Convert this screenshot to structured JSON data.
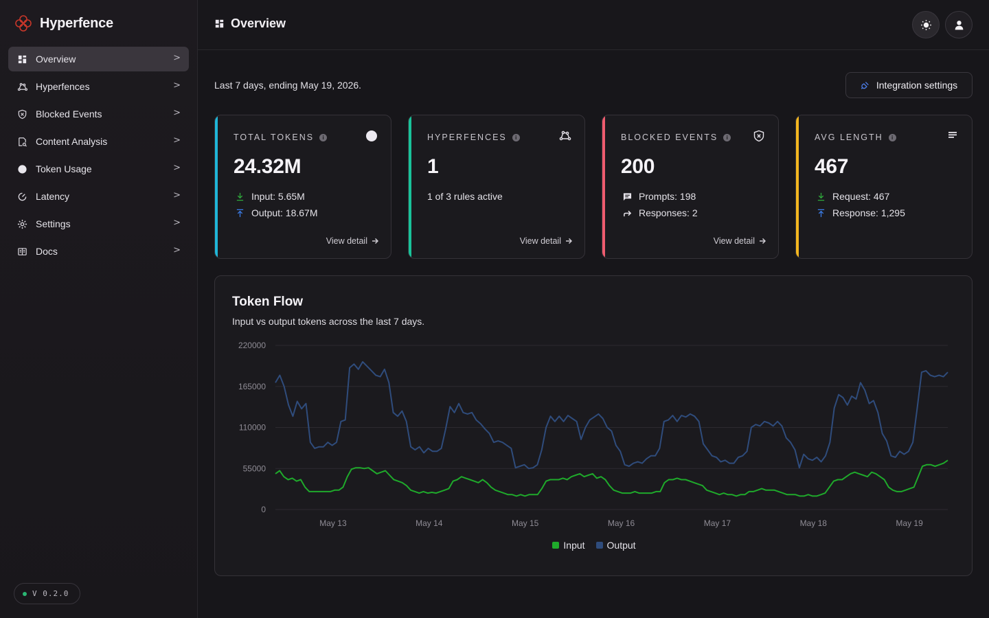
{
  "app": {
    "name": "Hyperfence"
  },
  "sidebar": {
    "items": [
      {
        "label": "Overview",
        "icon": "grid-icon",
        "active": true
      },
      {
        "label": "Hyperfences",
        "icon": "fence-icon"
      },
      {
        "label": "Blocked Events",
        "icon": "shield-icon"
      },
      {
        "label": "Content Analysis",
        "icon": "document-scan-icon"
      },
      {
        "label": "Token Usage",
        "icon": "circle-icon"
      },
      {
        "label": "Latency",
        "icon": "gauge-icon"
      },
      {
        "label": "Settings",
        "icon": "gear-icon"
      },
      {
        "label": "Docs",
        "icon": "book-icon"
      }
    ],
    "chevron": ">",
    "version": "V 0.2.0"
  },
  "header": {
    "title": "Overview"
  },
  "main": {
    "range_text": "Last 7 days, ending May 19, 2026.",
    "integration_button": "Integration settings",
    "cards": [
      {
        "label": "TOTAL TOKENS",
        "value": "24.32M",
        "rows": [
          "Input: 5.65M",
          "Output: 18.67M"
        ],
        "link": "View detail",
        "accent": "#1fb6d8"
      },
      {
        "label": "HYPERFENCES",
        "value": "1",
        "plain": "1 of 3 rules active",
        "link": "View detail",
        "accent": "#19c39a"
      },
      {
        "label": "BLOCKED EVENTS",
        "value": "200",
        "rows": [
          "Prompts: 198",
          "Responses: 2"
        ],
        "link": "View detail",
        "accent": "#ef5b6e"
      },
      {
        "label": "AVG LENGTH",
        "value": "467",
        "rows": [
          "Request: 467",
          "Response: 1,295"
        ],
        "accent": "#f3b61f"
      }
    ]
  },
  "chart": {
    "title": "Token Flow",
    "subtitle": "Input vs output tokens across the last 7 days."
  },
  "chart_data": {
    "type": "line",
    "title": "Token Flow",
    "xlabel": "",
    "ylabel": "",
    "ylim": [
      0,
      220000
    ],
    "yticks": [
      "220000",
      "165000",
      "110000",
      "55000",
      "0"
    ],
    "xticks": [
      "May 13",
      "May 14",
      "May 15",
      "May 16",
      "May 17",
      "May 18",
      "May 19"
    ],
    "grid": true,
    "legend": "bottom-center",
    "series": [
      {
        "name": "Input",
        "color": "#1faa2b",
        "values": [
          48000,
          52000,
          44000,
          40000,
          42000,
          38000,
          40000,
          30000,
          24000,
          24000,
          24000,
          24000,
          24000,
          24000,
          26000,
          26000,
          30000,
          44000,
          54000,
          56000,
          56000,
          55000,
          56000,
          52000,
          48000,
          50000,
          52000,
          46000,
          40000,
          38000,
          36000,
          32000,
          26000,
          24000,
          22000,
          24000,
          22000,
          23000,
          22000,
          24000,
          26000,
          28000,
          38000,
          40000,
          44000,
          42000,
          40000,
          38000,
          36000,
          40000,
          36000,
          30000,
          26000,
          24000,
          22000,
          20000,
          20000,
          18000,
          20000,
          18000,
          20000,
          20000,
          20000,
          28000,
          38000,
          40000,
          40000,
          40000,
          42000,
          40000,
          44000,
          46000,
          48000,
          44000,
          46000,
          48000,
          42000,
          44000,
          40000,
          32000,
          26000,
          24000,
          22000,
          22000,
          22000,
          24000,
          22000,
          22000,
          22000,
          22000,
          24000,
          24000,
          36000,
          40000,
          40000,
          42000,
          40000,
          40000,
          38000,
          36000,
          34000,
          32000,
          26000,
          24000,
          22000,
          20000,
          22000,
          20000,
          20000,
          18000,
          20000,
          20000,
          24000,
          24000,
          26000,
          28000,
          26000,
          26000,
          26000,
          24000,
          22000,
          20000,
          20000,
          20000,
          18000,
          18000,
          20000,
          18000,
          18000,
          20000,
          22000,
          30000,
          38000,
          40000,
          40000,
          44000,
          48000,
          50000,
          48000,
          46000,
          44000,
          50000,
          48000,
          44000,
          40000,
          30000,
          26000,
          24000,
          24000,
          26000,
          28000,
          30000,
          44000,
          58000,
          60000,
          60000,
          58000,
          60000,
          62000,
          66000
        ]
      },
      {
        "name": "Output",
        "color": "#2f4c7c",
        "values": [
          170000,
          180000,
          165000,
          140000,
          125000,
          145000,
          135000,
          142000,
          90000,
          82000,
          84000,
          84000,
          90000,
          86000,
          90000,
          118000,
          120000,
          190000,
          195000,
          188000,
          198000,
          192000,
          186000,
          180000,
          178000,
          188000,
          170000,
          130000,
          125000,
          132000,
          118000,
          84000,
          80000,
          84000,
          76000,
          82000,
          78000,
          78000,
          82000,
          108000,
          138000,
          130000,
          142000,
          130000,
          128000,
          130000,
          120000,
          115000,
          108000,
          102000,
          90000,
          92000,
          90000,
          86000,
          82000,
          56000,
          58000,
          60000,
          55000,
          56000,
          60000,
          80000,
          110000,
          125000,
          118000,
          125000,
          118000,
          126000,
          122000,
          118000,
          94000,
          110000,
          120000,
          124000,
          128000,
          122000,
          110000,
          105000,
          86000,
          78000,
          60000,
          58000,
          62000,
          64000,
          62000,
          68000,
          72000,
          72000,
          82000,
          118000,
          120000,
          126000,
          118000,
          126000,
          124000,
          128000,
          125000,
          118000,
          88000,
          80000,
          72000,
          70000,
          64000,
          66000,
          62000,
          62000,
          70000,
          72000,
          78000,
          110000,
          114000,
          112000,
          118000,
          116000,
          112000,
          118000,
          112000,
          96000,
          90000,
          80000,
          56000,
          74000,
          68000,
          66000,
          70000,
          64000,
          72000,
          90000,
          136000,
          154000,
          150000,
          140000,
          152000,
          148000,
          170000,
          160000,
          142000,
          146000,
          130000,
          102000,
          92000,
          72000,
          70000,
          78000,
          74000,
          78000,
          90000,
          136000,
          184000,
          186000,
          180000,
          178000,
          180000,
          178000,
          184000
        ]
      }
    ]
  }
}
